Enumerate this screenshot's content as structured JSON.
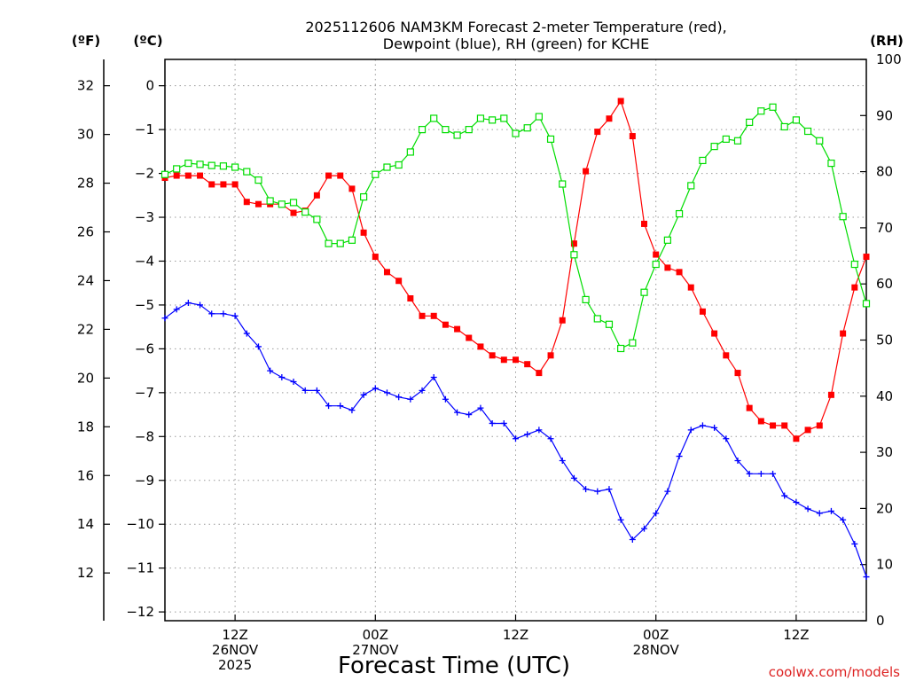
{
  "chart_data": {
    "type": "line",
    "title_lines": [
      "2025112606 NAM3KM Forecast 2-meter Temperature (red),",
      "Dewpoint (blue), RH (green) for KCHE"
    ],
    "unit_labels": {
      "fahrenheit": "(ºF)",
      "celsius": "(ºC)",
      "rh": "(RH)"
    },
    "xlabel": "Forecast Time (UTC)",
    "watermark": "coolwx.com/models",
    "x_range_hours": [
      6,
      66
    ],
    "x_ticks": [
      {
        "hour": 12,
        "lines": [
          "12Z",
          "26NOV",
          "2025"
        ]
      },
      {
        "hour": 24,
        "lines": [
          "00Z",
          "27NOV"
        ]
      },
      {
        "hour": 36,
        "lines": [
          "12Z"
        ]
      },
      {
        "hour": 48,
        "lines": [
          "00Z",
          "28NOV"
        ]
      },
      {
        "hour": 60,
        "lines": [
          "12Z"
        ]
      }
    ],
    "celsius_range": [
      -12.2,
      0.6
    ],
    "celsius_ticks": [
      0,
      -1,
      -2,
      -3,
      -4,
      -5,
      -6,
      -7,
      -8,
      -9,
      -10,
      -11,
      -12
    ],
    "celsius_tick_labels": [
      "0",
      "−1",
      "−2",
      "−3",
      "−4",
      "−5",
      "−6",
      "−7",
      "−8",
      "−9",
      "−10",
      "−11",
      "−12"
    ],
    "fahrenheit_ticks": [
      32,
      30,
      28,
      26,
      24,
      22,
      20,
      18,
      16,
      14,
      12
    ],
    "fahrenheit_tick_labels": [
      "32",
      "30",
      "28",
      "26",
      "24",
      "22",
      "20",
      "18",
      "16",
      "14",
      "12"
    ],
    "rh_range": [
      0,
      100
    ],
    "rh_ticks": [
      100,
      90,
      80,
      70,
      60,
      50,
      40,
      30,
      20,
      10,
      0
    ],
    "rh_tick_labels": [
      "100",
      "90",
      "80",
      "70",
      "60",
      "50",
      "40",
      "30",
      "20",
      "10",
      "0"
    ],
    "series": [
      {
        "name": "2-meter Temperature",
        "axis": "celsius",
        "color": "#ff0000",
        "marker": "filled-square",
        "values": [
          -2.1,
          -2.05,
          -2.05,
          -2.05,
          -2.25,
          -2.25,
          -2.25,
          -2.65,
          -2.7,
          -2.7,
          -2.7,
          -2.9,
          -2.85,
          -2.5,
          -2.05,
          -2.05,
          -2.35,
          -3.35,
          -3.9,
          -4.25,
          -4.45,
          -4.85,
          -5.25,
          -5.25,
          -5.45,
          -5.55,
          -5.75,
          -5.95,
          -6.15,
          -6.25,
          -6.25,
          -6.35,
          -6.55,
          -6.15,
          -5.35,
          -3.6,
          -1.95,
          -1.05,
          -0.75,
          -0.35,
          -1.15,
          -3.15,
          -3.85,
          -4.15,
          -4.25,
          -4.6,
          -5.15,
          -5.65,
          -6.15,
          -6.55,
          -7.35,
          -7.65,
          -7.75,
          -7.75,
          -8.05,
          -7.85,
          -7.75,
          -7.05,
          -5.65,
          -4.6,
          -3.9
        ]
      },
      {
        "name": "Dewpoint",
        "axis": "celsius",
        "color": "#0000ff",
        "marker": "plus",
        "values": [
          -5.3,
          -5.1,
          -4.95,
          -5.0,
          -5.2,
          -5.2,
          -5.25,
          -5.65,
          -5.95,
          -6.5,
          -6.65,
          -6.75,
          -6.95,
          -6.95,
          -7.3,
          -7.3,
          -7.4,
          -7.05,
          -6.9,
          -7.0,
          -7.1,
          -7.15,
          -6.95,
          -6.65,
          -7.15,
          -7.45,
          -7.5,
          -7.35,
          -7.7,
          -7.7,
          -8.05,
          -7.95,
          -7.85,
          -8.05,
          -8.55,
          -8.95,
          -9.2,
          -9.25,
          -9.2,
          -9.9,
          -10.35,
          -10.1,
          -9.75,
          -9.25,
          -8.45,
          -7.85,
          -7.75,
          -7.8,
          -8.05,
          -8.55,
          -8.85,
          -8.85,
          -8.85,
          -9.35,
          -9.5,
          -9.65,
          -9.75,
          -9.7,
          -9.9,
          -10.45,
          -11.2
        ]
      },
      {
        "name": "RH",
        "axis": "rh",
        "color": "#00dd00",
        "marker": "open-square",
        "values": [
          79.5,
          80.5,
          81.5,
          81.3,
          81.1,
          81.0,
          80.8,
          80.0,
          78.5,
          74.8,
          74.2,
          74.5,
          72.8,
          71.5,
          67.2,
          67.2,
          67.8,
          75.5,
          79.5,
          80.8,
          81.2,
          83.5,
          87.5,
          89.5,
          87.5,
          86.5,
          87.5,
          89.5,
          89.2,
          89.5,
          86.8,
          87.8,
          89.8,
          85.8,
          77.8,
          65.2,
          57.2,
          53.8,
          52.8,
          48.5,
          49.5,
          58.5,
          63.5,
          67.8,
          72.5,
          77.5,
          82.0,
          84.5,
          85.8,
          85.5,
          88.8,
          90.8,
          91.5,
          88.0,
          89.2,
          87.2,
          85.5,
          81.5,
          72.0,
          63.5,
          56.5
        ]
      }
    ]
  }
}
